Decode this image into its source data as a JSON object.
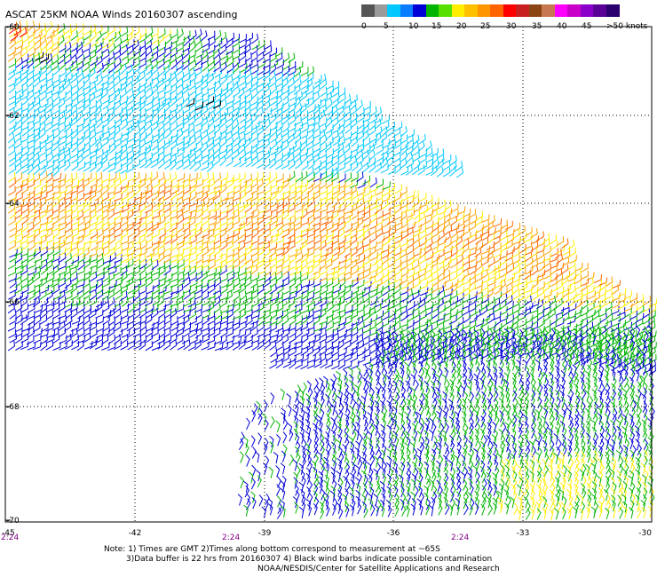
{
  "title": "ASCAT 25KM NOAA Winds 20160307 ascending",
  "legend": {
    "unit_label": ">50 knots",
    "bins": [
      {
        "color": "#555555"
      },
      {
        "color": "#9a9a9a"
      },
      {
        "color": "#00c8ff"
      },
      {
        "color": "#0a7cff"
      },
      {
        "color": "#0000d6"
      },
      {
        "color": "#00b400"
      },
      {
        "color": "#55e000"
      },
      {
        "color": "#ffee00"
      },
      {
        "color": "#ffc000"
      },
      {
        "color": "#ff9600"
      },
      {
        "color": "#ff6400"
      },
      {
        "color": "#ff0000"
      },
      {
        "color": "#c8201e"
      },
      {
        "color": "#8b4513"
      },
      {
        "color": "#c87850"
      },
      {
        "color": "#ff00ff"
      },
      {
        "color": "#c800c8"
      },
      {
        "color": "#8a00c8"
      },
      {
        "color": "#5a0096"
      },
      {
        "color": "#2a006e"
      }
    ],
    "ticks": [
      "0",
      "5",
      "10",
      "15",
      "20",
      "25",
      "30",
      "35",
      "40",
      "45"
    ]
  },
  "map": {
    "lat_labels": [
      "-60",
      "-62",
      "-64",
      "-66",
      "-68",
      "-70"
    ],
    "lon_labels": [
      "-45",
      "-42",
      "-39",
      "-36",
      "-33",
      "-30"
    ],
    "time_labels": [
      "2:24",
      "2:24",
      "2:24"
    ],
    "wind_colors": {
      "w5_10": "#00c8ff",
      "w10_15": "#0000d6",
      "w15_20": "#00b400",
      "w20_25": "#ffee00",
      "w25_30": "#ffa000",
      "w30_35": "#ff6400",
      "w35_40": "#ff0000",
      "contam": "#000000"
    }
  },
  "note": {
    "line1": "Note: 1) Times are GMT 2)Times along bottom correspond to measurement at ~65S",
    "line2": "3)Data buffer is 22 hrs from 20160307 4) Black wind barbs indicate possible contamination",
    "line3": "NOAA/NESDIS/Center for Satellite Applications and Research"
  }
}
